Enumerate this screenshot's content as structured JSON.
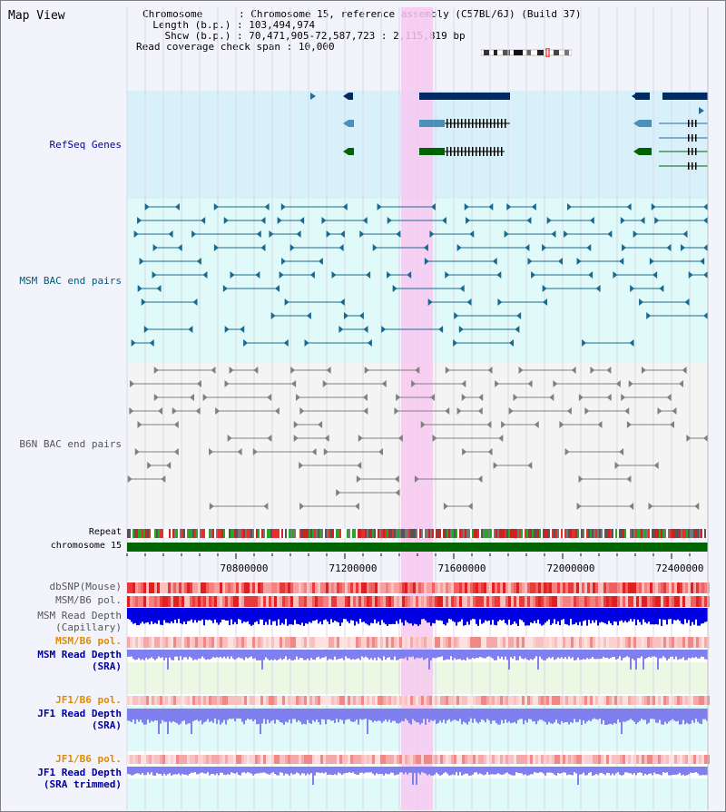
{
  "title": "Map View",
  "header": {
    "chromosome_key": "Chromosome",
    "chromosome_val": "Chromosome 15, reference assembly (C57BL/6J) (Build 37)",
    "length_key": "Length (b.p.)",
    "length_val": "103,494,974",
    "show_key": "Show (b.p.)",
    "show_val": "70,471,905-72,587,723 : 2,115,819 bp",
    "coverage_key": "Read coverage check span",
    "coverage_val": "10,000"
  },
  "tracks": {
    "refseq": "RefSeq Genes",
    "msm_bac": "MSM BAC end pairs",
    "b6n_bac": "B6N BAC end pairs",
    "repeat": "Repeat",
    "chromosome": "chromosome 15",
    "dbsnp": "dbSNP(Mouse)",
    "msm_b6_pol_1": "MSM/B6 pol.",
    "msm_read_depth_cap_1": "MSM Read Depth",
    "msm_read_depth_cap_2": "(Capillary)",
    "msm_b6_pol_2": "MSM/B6 pol.",
    "msm_read_depth_sra_1": "MSM Read Depth",
    "msm_read_depth_sra_2": "(SRA)",
    "jf1_b6_pol_1": "JF1/B6 pol.",
    "jf1_read_depth_sra_1": "JF1 Read Depth",
    "jf1_read_depth_sra_2": "(SRA)",
    "jf1_b6_pol_2": "JF1/B6 pol.",
    "jf1_read_depth_trim_1": "JF1 Read Depth",
    "jf1_read_depth_trim_2": "(SRA trimmed)"
  },
  "axis_ticks": [
    "70800000",
    "71200000",
    "71600000",
    "72000000",
    "72400000"
  ],
  "colors": {
    "refseq_bg": "#d7f0fa",
    "msm_bg": "#e0fafa",
    "highlight": "#f7c8f0",
    "chromosome_bar": "#006400",
    "depth_dark": "#0000e0",
    "depth_light": "#7f7ff0"
  }
}
